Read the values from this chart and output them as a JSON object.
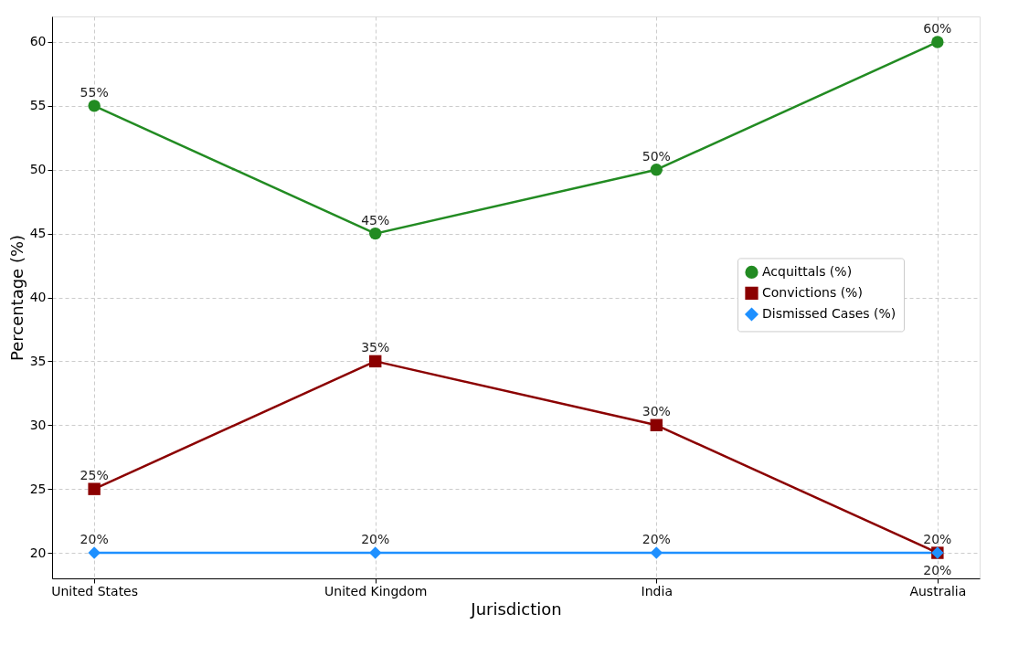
{
  "chart_data": {
    "type": "line",
    "xlabel": "Jurisdiction",
    "ylabel": "Percentage (%)",
    "categories": [
      "United States",
      "United Kingdom",
      "India",
      "Australia"
    ],
    "series": [
      {
        "name": "Acquittals (%)",
        "color": "#228b22",
        "marker": "circle",
        "values": [
          55,
          45,
          50,
          60
        ],
        "value_labels": [
          "55%",
          "45%",
          "50%",
          "60%"
        ]
      },
      {
        "name": "Convictions (%)",
        "color": "#8b0000",
        "marker": "square",
        "values": [
          25,
          35,
          30,
          20
        ],
        "value_labels": [
          "25%",
          "35%",
          "30%",
          "20%"
        ]
      },
      {
        "name": "Dismissed Cases (%)",
        "color": "#1e90ff",
        "marker": "diamond",
        "values": [
          20,
          20,
          20,
          20
        ],
        "value_labels": [
          "20%",
          "20%",
          "20%",
          "20%"
        ]
      }
    ],
    "ylim": [
      18,
      62
    ],
    "yticks": [
      20,
      25,
      30,
      35,
      40,
      45,
      50,
      55,
      60
    ],
    "grid": true,
    "legend": "right",
    "line_style": "solid"
  }
}
